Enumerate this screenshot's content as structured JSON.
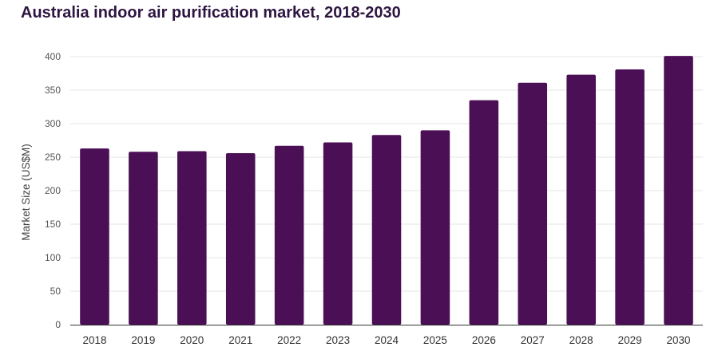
{
  "chart_data": {
    "type": "bar",
    "title": "Australia indoor air purification market, 2018-2030",
    "xlabel": "",
    "ylabel": "Market Size (US$M)",
    "categories": [
      "2018",
      "2019",
      "2020",
      "2021",
      "2022",
      "2023",
      "2024",
      "2025",
      "2026",
      "2027",
      "2028",
      "2029",
      "2030"
    ],
    "values": [
      263,
      258,
      259,
      256,
      267,
      272,
      283,
      290,
      335,
      361,
      373,
      381,
      401
    ],
    "ylim": [
      0,
      400
    ],
    "yticks": [
      0,
      50,
      100,
      150,
      200,
      250,
      300,
      350,
      400
    ],
    "grid": true,
    "legend": "none",
    "colors": {
      "bar": "#4b0f56",
      "grid": "#e6e6e6",
      "axis": "#333333",
      "title": "#2d1541"
    }
  }
}
